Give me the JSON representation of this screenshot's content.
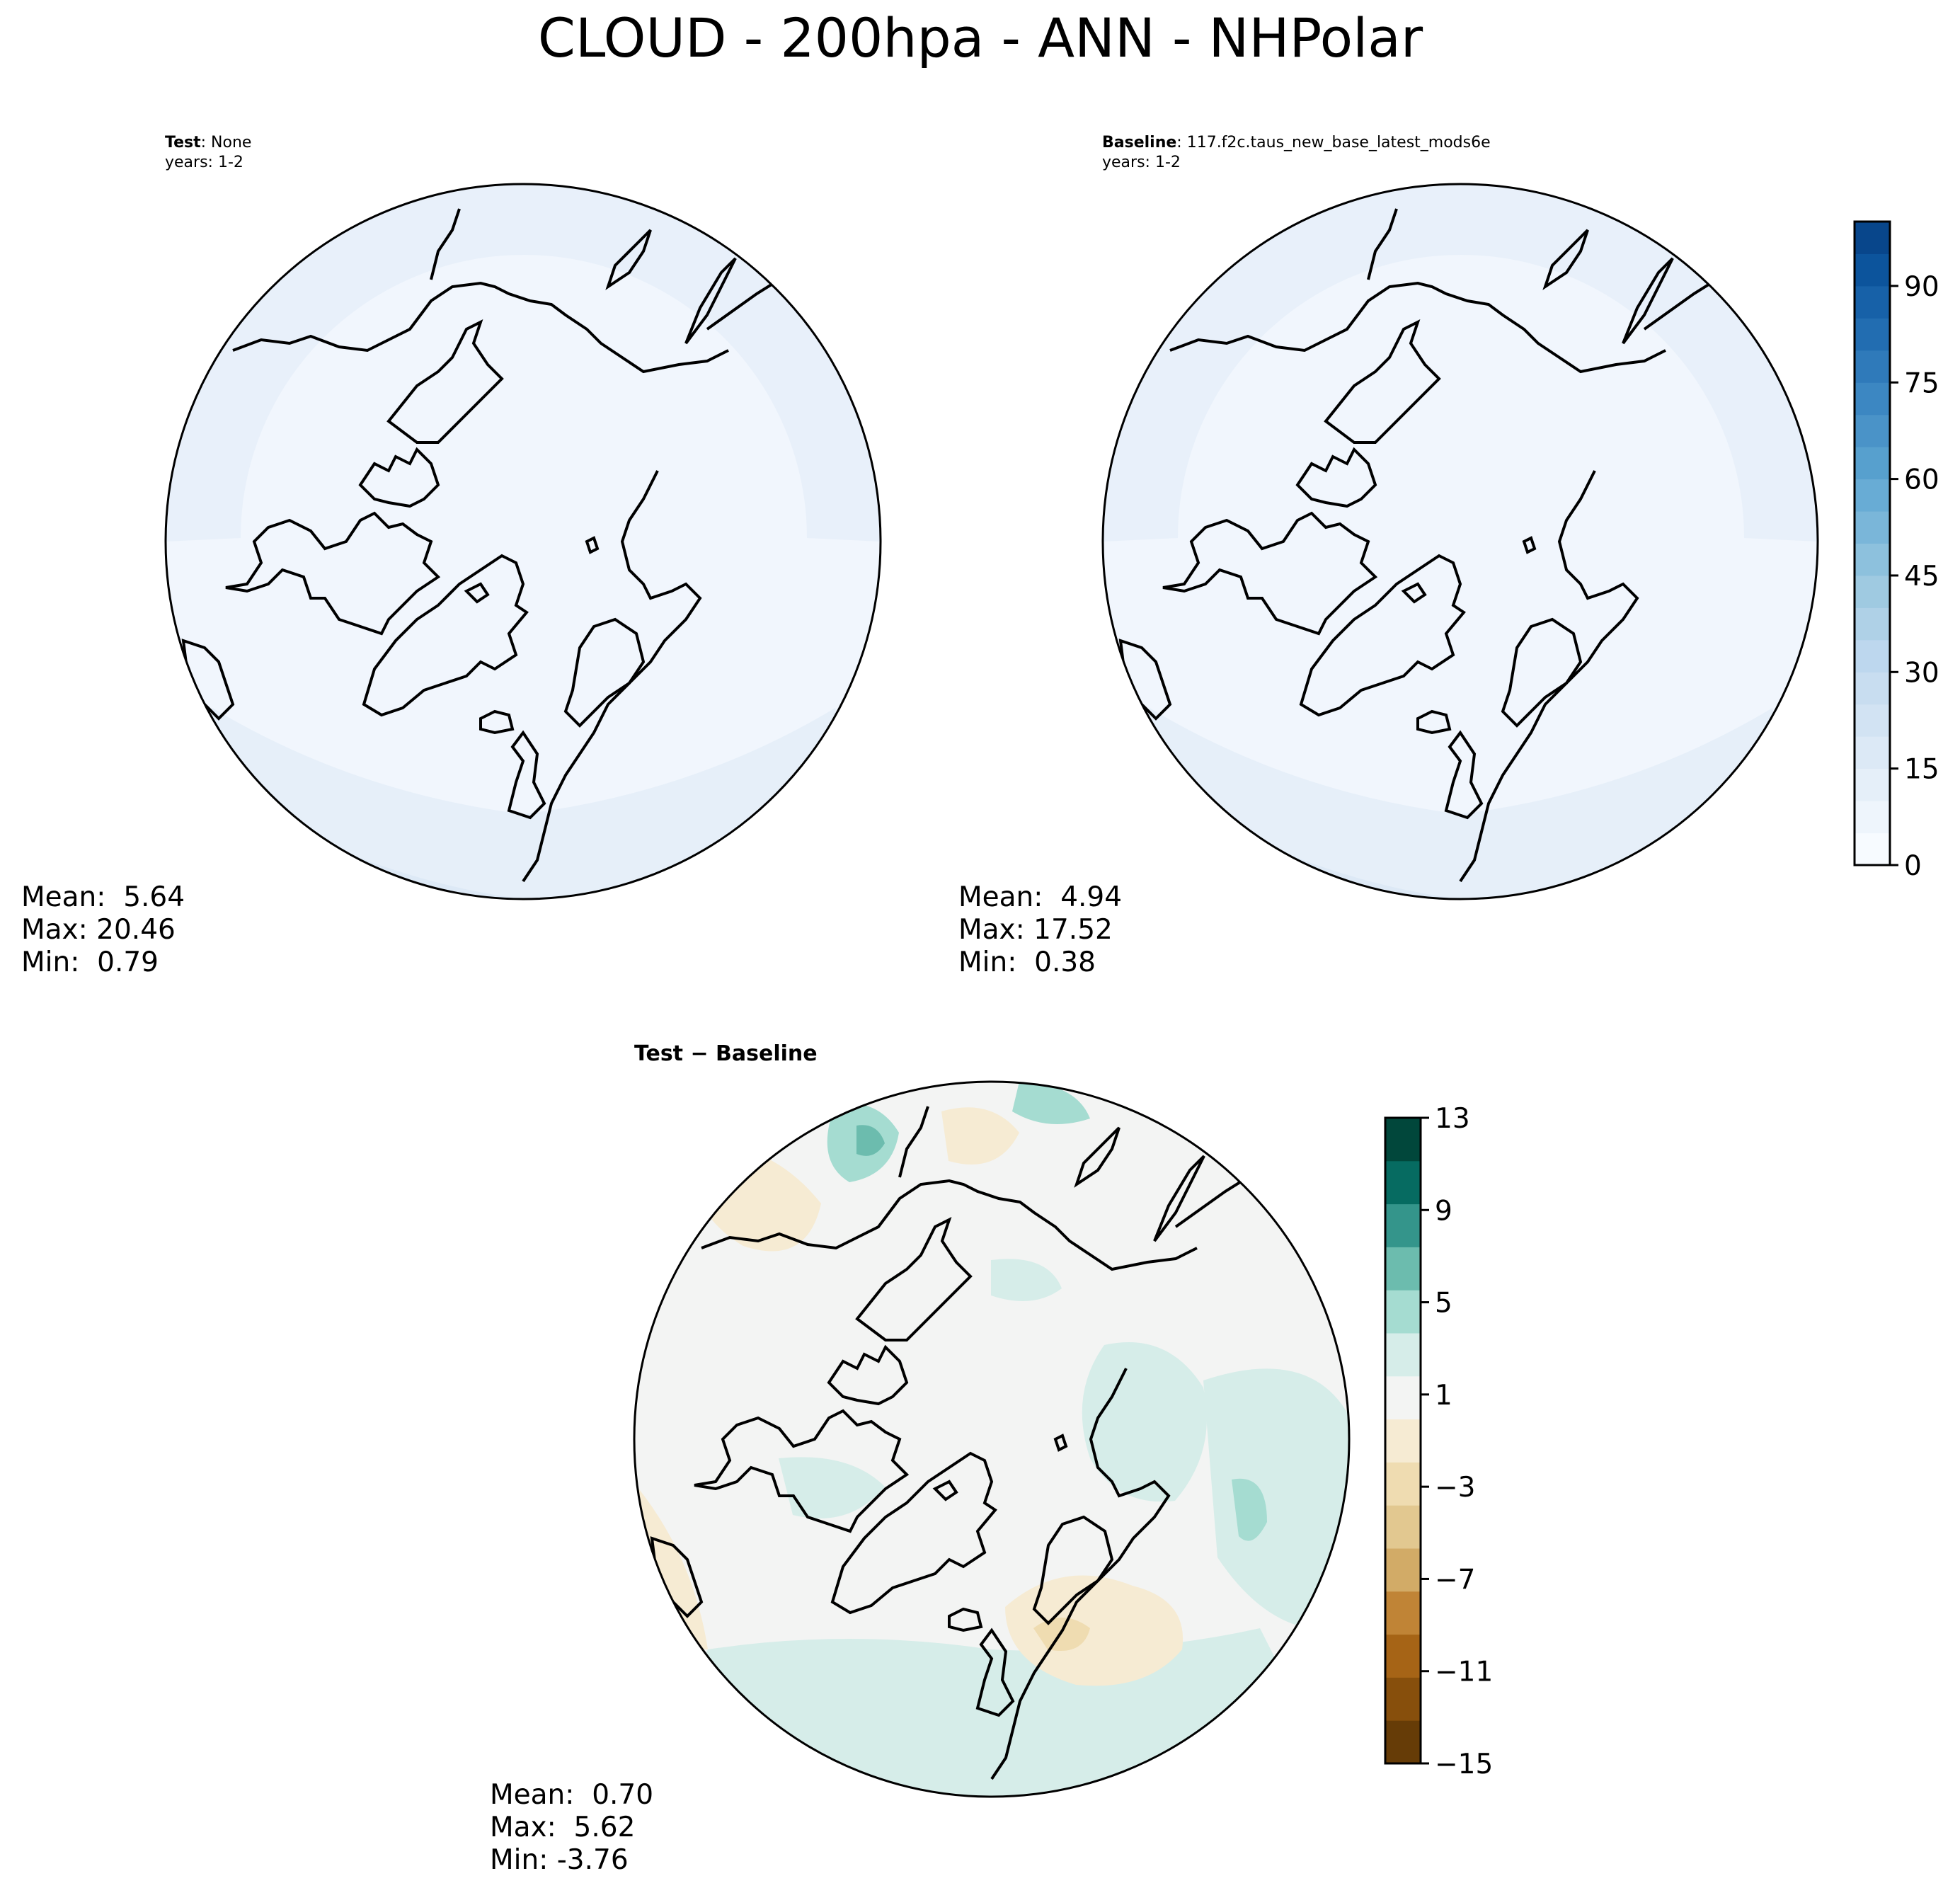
{
  "figure": {
    "title": "CLOUD - 200hpa - ANN - NHPolar"
  },
  "panels": [
    {
      "id": "test",
      "label_bold": "Test",
      "label_rest": ": None",
      "years": "years: 1-2",
      "stats": {
        "mean": "Mean:  5.64",
        "max": "Max: 20.46",
        "min": "Min:  0.79"
      }
    },
    {
      "id": "baseline",
      "label_bold": "Baseline",
      "label_rest": ": 117.f2c.taus_new_base_latest_mods6e",
      "years": "years: 1-2",
      "stats": {
        "mean": "Mean:  4.94",
        "max": "Max: 17.52",
        "min": "Min:  0.38"
      }
    },
    {
      "id": "diff",
      "label_bold": "Test − Baseline",
      "stats": {
        "mean": "Mean:  0.70",
        "max": "Max:  5.62",
        "min": "Min: -3.76"
      }
    }
  ],
  "colorbars": {
    "cloud": {
      "ticks": [
        "0",
        "15",
        "30",
        "45",
        "60",
        "75",
        "90"
      ],
      "range": [
        0,
        100
      ],
      "levels": 20,
      "colors": [
        "#f7fbff",
        "#eef5fc",
        "#e5eff9",
        "#dce9f6",
        "#d2e3f3",
        "#c8ddf0",
        "#bdd7ee",
        "#afd1e7",
        "#9fcae1",
        "#8dc1dd",
        "#7ab6d9",
        "#68acd5",
        "#57a0ce",
        "#4a93c8",
        "#3c87c2",
        "#2f7aba",
        "#226db1",
        "#1761a8",
        "#0c549c",
        "#08468b"
      ]
    },
    "diff": {
      "ticks": [
        "13",
        "9",
        "5",
        "1",
        "−3",
        "−7",
        "−11",
        "−15"
      ],
      "range": [
        -15,
        13
      ],
      "colors": [
        "#663c07",
        "#874f0c",
        "#a66416",
        "#c08436",
        "#d2ab67",
        "#e2c890",
        "#efdcb1",
        "#f6ebd3",
        "#f3f4f3",
        "#d6ede9",
        "#a5dcd1",
        "#6cbcae",
        "#34958b",
        "#066b61",
        "#01473b"
      ]
    }
  },
  "map_colors": {
    "polar_base": "#f1f6fd",
    "ring_light": "#e6eff9",
    "ring_mid": "#dde9f6",
    "coastline": "#000000",
    "diff_base": "#f3f4f3",
    "diff_pos_light": "#d6ede9",
    "diff_pos_mid": "#a5dcd1",
    "diff_pos_dark": "#6cbcae",
    "diff_neg_light": "#f6ebd3",
    "diff_neg_mid": "#efdcb1"
  }
}
